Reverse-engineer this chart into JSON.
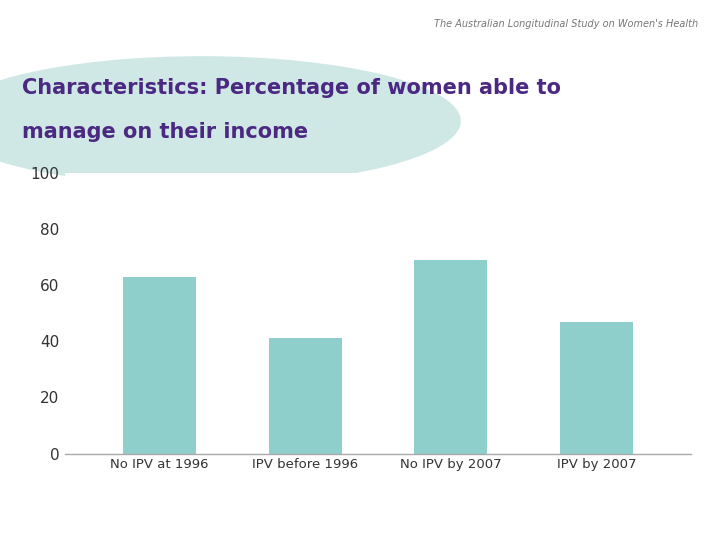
{
  "title_line1": "Characteristics: Percentage of women able to",
  "title_line2": "manage on their income",
  "subtitle": "The Australian Longitudinal Study on Women's Health",
  "categories": [
    "No IPV at 1996",
    "IPV before 1996",
    "No IPV by 2007",
    "IPV by 2007"
  ],
  "values": [
    63,
    41,
    69,
    47
  ],
  "bar_color": "#8ecfcc",
  "bar_edge_color": "#8ecfcc",
  "ylim": [
    0,
    100
  ],
  "yticks": [
    0,
    20,
    40,
    60,
    80,
    100
  ],
  "bg_color": "#ffffff",
  "title_color": "#4b2882",
  "subtitle_color": "#777777",
  "tick_color": "#333333",
  "axis_line_color": "#aaaaaa",
  "header_bg_color": "#dcd4e8",
  "teal_banner_color": "#a8d5d0"
}
